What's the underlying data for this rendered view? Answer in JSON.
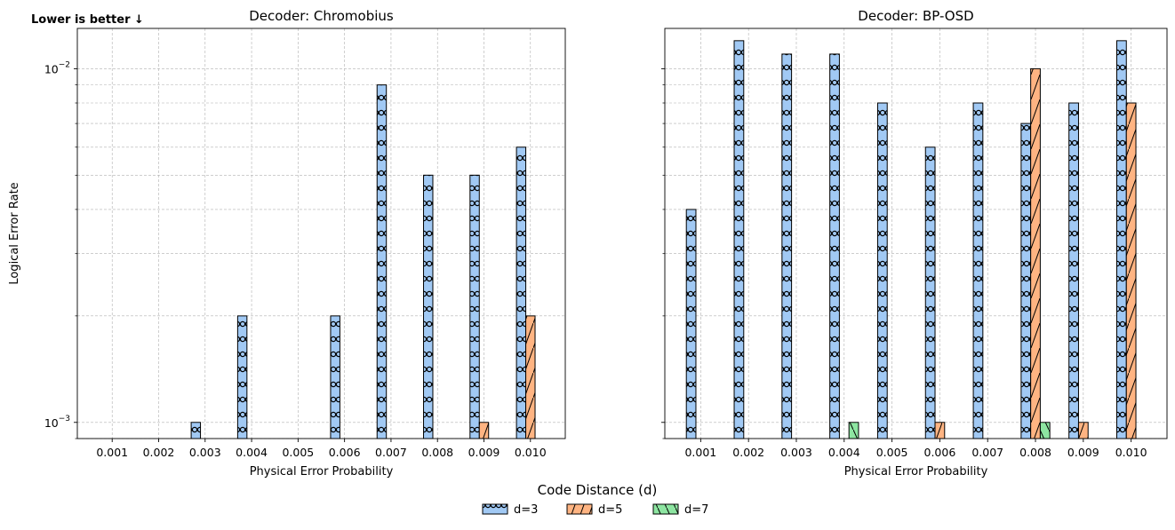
{
  "figure": {
    "annotation": "Lower is better ↓",
    "legend_title": "Code Distance (d)"
  },
  "chart_data": [
    {
      "type": "bar",
      "title": "Decoder: Chromobius",
      "xlabel": "Physical Error Probability",
      "ylabel": "Logical Error Rate",
      "yscale": "log",
      "ylim": [
        0.0009,
        0.013
      ],
      "y_major_ticks": [
        0.001,
        0.01
      ],
      "y_tick_labels": [
        "10^-3",
        "10^-2"
      ],
      "categories": [
        "0.001",
        "0.002",
        "0.003",
        "0.004",
        "0.005",
        "0.006",
        "0.007",
        "0.008",
        "0.009",
        "0.010"
      ],
      "series": [
        {
          "name": "d=3",
          "values": [
            null,
            null,
            0.001,
            0.002,
            null,
            0.002,
            0.009,
            0.005,
            0.005,
            0.006
          ]
        },
        {
          "name": "d=5",
          "values": [
            null,
            null,
            null,
            null,
            null,
            null,
            null,
            null,
            0.001,
            0.002
          ]
        },
        {
          "name": "d=7",
          "values": [
            null,
            null,
            null,
            null,
            null,
            null,
            null,
            null,
            null,
            null
          ]
        }
      ],
      "grid": true,
      "show_ylabel": true,
      "show_y_tick_labels": true
    },
    {
      "type": "bar",
      "title": "Decoder: BP-OSD",
      "xlabel": "Physical Error Probability",
      "ylabel": "",
      "yscale": "log",
      "ylim": [
        0.0009,
        0.013
      ],
      "y_major_ticks": [
        0.001,
        0.01
      ],
      "y_tick_labels": [
        "",
        ""
      ],
      "categories": [
        "0.001",
        "0.002",
        "0.003",
        "0.004",
        "0.005",
        "0.006",
        "0.007",
        "0.008",
        "0.009",
        "0.010"
      ],
      "series": [
        {
          "name": "d=3",
          "values": [
            0.004,
            0.012,
            0.011,
            0.011,
            0.008,
            0.006,
            0.008,
            0.007,
            0.008,
            0.012
          ]
        },
        {
          "name": "d=5",
          "values": [
            null,
            null,
            null,
            null,
            null,
            0.001,
            null,
            0.01,
            0.001,
            0.008
          ]
        },
        {
          "name": "d=7",
          "values": [
            null,
            null,
            null,
            0.001,
            null,
            null,
            null,
            0.001,
            null,
            null
          ]
        }
      ],
      "grid": true,
      "show_ylabel": false,
      "show_y_tick_labels": false
    }
  ],
  "legend": {
    "placement": "bottom-center",
    "items": [
      {
        "label": "d=3",
        "color": "#a1c9f4",
        "hatch": "circles"
      },
      {
        "label": "d=5",
        "color": "#ffb482",
        "hatch": "diagonal"
      },
      {
        "label": "d=7",
        "color": "#8de5a1",
        "hatch": "backslash"
      }
    ]
  }
}
